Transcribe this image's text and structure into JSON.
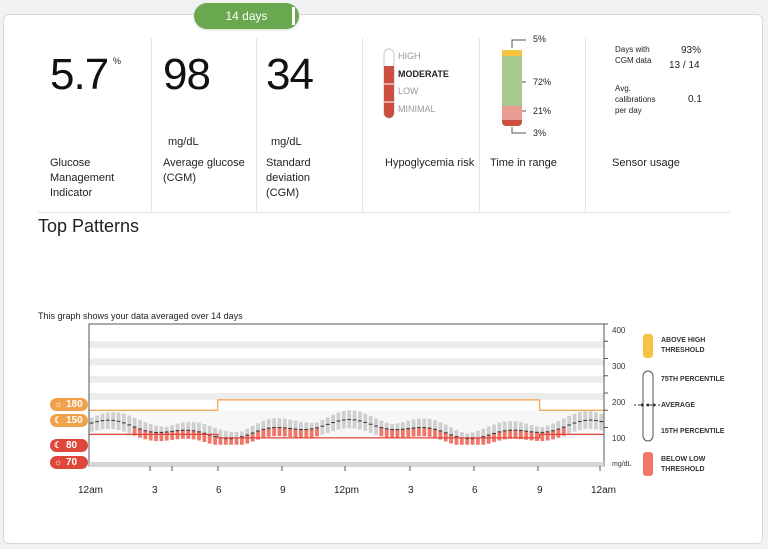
{
  "tab": {
    "label": "14 days"
  },
  "metrics": {
    "gmi": {
      "value": "5.7",
      "unit": "%",
      "label": "Glucose Management Indicator"
    },
    "avg": {
      "value": "98",
      "unit": "mg/dL",
      "label": "Average glucose (CGM)"
    },
    "sd": {
      "value": "34",
      "unit": "mg/dL",
      "label": "Standard deviation (CGM)"
    },
    "hypo": {
      "levels": [
        "HIGH",
        "MODERATE",
        "LOW",
        "MINIMAL"
      ],
      "selected": "MODERATE",
      "label": "Hypoglycemia risk"
    },
    "tir": {
      "values": [
        "5%",
        "72%",
        "21%",
        "3%"
      ],
      "label": "Time in range"
    },
    "sensor": {
      "days_label": "Days with CGM data",
      "days_pct": "93%",
      "days_count": "13 / 14",
      "cal_label": "Avg. calibrations per day",
      "cal_value": "0.1",
      "label": "Sensor usage"
    }
  },
  "patterns": {
    "title": "Top Patterns",
    "caption": "This graph shows your data averaged over 14 days",
    "y_ticks": [
      "400",
      "300",
      "200",
      "100"
    ],
    "y_unit": "mg/dL",
    "x_ticks": [
      "12am",
      "3",
      "6",
      "9",
      "12pm",
      "3",
      "6",
      "9",
      "12am"
    ],
    "thresholds": [
      "180",
      "150",
      "80",
      "70"
    ],
    "legend": {
      "above": "ABOVE HIGH THRESHOLD",
      "p75": "75TH PERCENTILE",
      "avg": "AVERAGE",
      "p15": "15TH PERCENTILE",
      "below": "BELOW LOW THRESHOLD"
    },
    "colors": {
      "high": "#f5c242",
      "low": "#f0766a",
      "target": "#f0a24a",
      "green": "#6aa84f"
    }
  }
}
